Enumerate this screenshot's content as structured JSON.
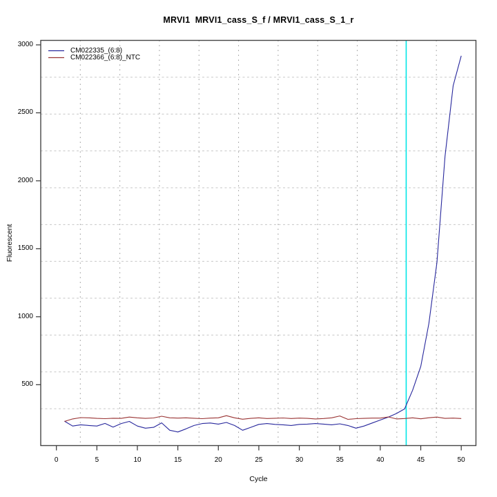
{
  "chart_data": {
    "type": "line",
    "title": "MRVI1  MRVI1_cass_S_f / MRVI1_cass_S_1_r",
    "xlabel": "Cycle",
    "ylabel": "Fluorescent",
    "xlim": [
      -2,
      52
    ],
    "ylim": [
      50,
      3030
    ],
    "x_ticks": [
      0,
      5,
      10,
      15,
      20,
      25,
      30,
      35,
      40,
      45,
      50
    ],
    "y_ticks": [
      500,
      1000,
      1500,
      2000,
      2500,
      3000
    ],
    "grid": {
      "style": "dotted",
      "nx": 11,
      "ny": 11,
      "v_color": "#8a8a8a",
      "h_color": "#c6c6c6"
    },
    "legend_position": "top-left",
    "threshold_line": {
      "x": 43.2,
      "color": "#00e6e6"
    },
    "x": [
      1,
      2,
      3,
      4,
      5,
      6,
      7,
      8,
      9,
      10,
      11,
      12,
      13,
      14,
      15,
      16,
      17,
      18,
      19,
      20,
      21,
      22,
      23,
      24,
      25,
      26,
      27,
      28,
      29,
      30,
      31,
      32,
      33,
      34,
      35,
      36,
      37,
      38,
      39,
      40,
      41,
      42,
      43,
      44,
      45,
      46,
      47,
      48,
      49,
      50
    ],
    "series": [
      {
        "name": "CM022335_(6:8)",
        "color": "#26269c",
        "values": [
          232,
          196,
          205,
          200,
          196,
          215,
          188,
          214,
          230,
          196,
          180,
          186,
          219,
          165,
          152,
          175,
          200,
          214,
          218,
          210,
          222,
          200,
          165,
          186,
          208,
          214,
          208,
          205,
          200,
          208,
          210,
          214,
          210,
          205,
          212,
          200,
          180,
          196,
          218,
          240,
          262,
          288,
          322,
          460,
          635,
          950,
          1400,
          2180,
          2700,
          2920
        ]
      },
      {
        "name": "CM022366_(6:8)_NTC",
        "color": "#993232",
        "values": [
          230,
          248,
          258,
          256,
          252,
          250,
          253,
          252,
          262,
          256,
          252,
          255,
          268,
          256,
          254,
          256,
          253,
          250,
          254,
          256,
          272,
          256,
          246,
          252,
          256,
          251,
          253,
          255,
          251,
          254,
          252,
          248,
          251,
          256,
          270,
          245,
          250,
          252,
          254,
          254,
          263,
          248,
          251,
          256,
          249,
          257,
          262,
          252,
          254,
          251
        ]
      }
    ],
    "box_color": "#444444"
  }
}
